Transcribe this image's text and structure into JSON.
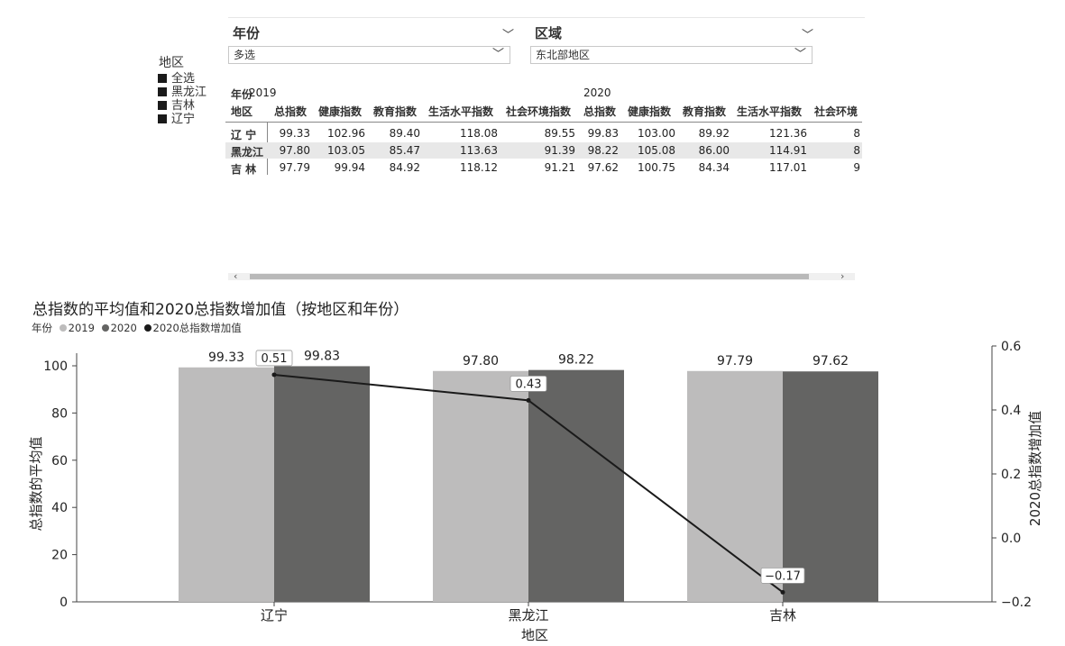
{
  "slicers": {
    "year": {
      "title": "年份",
      "value": "多选"
    },
    "region": {
      "title": "区域",
      "value": "东北部地区"
    }
  },
  "area_slicer": {
    "title": "地区",
    "items": [
      "全选",
      "黑龙江",
      "吉林",
      "辽宁"
    ]
  },
  "matrix": {
    "row_header_top": "年份",
    "row_header_bottom": "地区",
    "years": [
      "2019",
      "2020"
    ],
    "columns": [
      "总指数",
      "健康指数",
      "教育指数",
      "生活水平指数",
      "社会环境指数"
    ],
    "rows": [
      {
        "region": "辽 宁",
        "values": [
          "99.33",
          "102.96",
          "89.40",
          "118.08",
          "89.55",
          "99.83",
          "103.00",
          "89.92",
          "121.36",
          "8"
        ]
      },
      {
        "region": "黑龙江",
        "values": [
          "97.80",
          "103.05",
          "85.47",
          "113.63",
          "91.39",
          "98.22",
          "105.08",
          "86.00",
          "114.91",
          "8"
        ]
      },
      {
        "region": "吉 林",
        "values": [
          "97.79",
          "99.94",
          "84.92",
          "118.12",
          "91.21",
          "97.62",
          "100.75",
          "84.34",
          "117.01",
          "9"
        ]
      }
    ],
    "truncated_last_header": "社会环境",
    "scroll_left": "‹",
    "scroll_right": "›"
  },
  "chart_data": {
    "type": "bar",
    "title": "总指数的平均值和2020总指数增加值（按地区和年份）",
    "legend_label": "年份",
    "categories": [
      "辽宁",
      "黑龙江",
      "吉林"
    ],
    "series": [
      {
        "name": "2019",
        "values": [
          99.33,
          97.8,
          97.79
        ],
        "color": "#bdbcbc"
      },
      {
        "name": "2020",
        "values": [
          99.83,
          98.22,
          97.62
        ],
        "color": "#646463"
      },
      {
        "name": "2020总指数增加值",
        "type": "line",
        "axis": "right",
        "values": [
          0.51,
          0.43,
          -0.17
        ],
        "color": "#1a1a1a"
      }
    ],
    "bar_labels": [
      [
        "99.33",
        "99.83"
      ],
      [
        "97.80",
        "98.22"
      ],
      [
        "97.79",
        "97.62"
      ]
    ],
    "line_labels": [
      "0.51",
      "0.43",
      "−0.17"
    ],
    "xlabel": "地区",
    "ylabel": "总指数的平均值",
    "ylabel_right": "2020总指数增加值",
    "ylim": [
      0,
      100
    ],
    "yticks": [
      "0",
      "20",
      "40",
      "60",
      "80",
      "100"
    ],
    "ylim_right": [
      -0.2,
      0.6
    ],
    "yticks_right": [
      "−0.2",
      "0.0",
      "0.2",
      "0.4",
      "0.6"
    ]
  }
}
